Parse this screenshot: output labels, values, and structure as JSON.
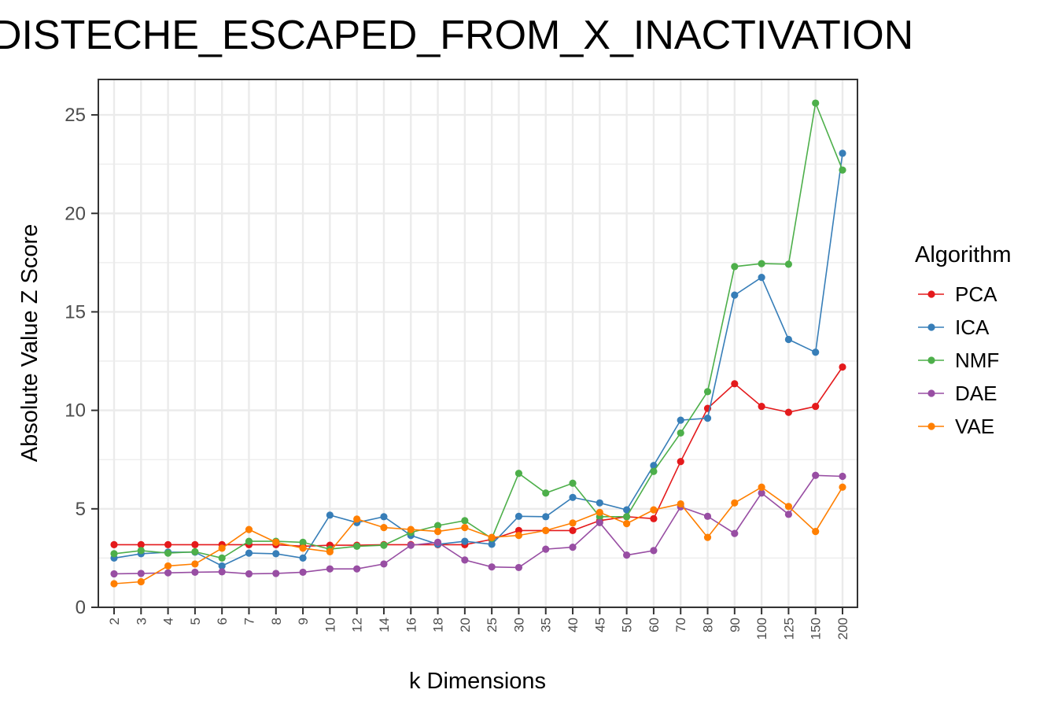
{
  "chart_data": {
    "type": "line",
    "title": "DISTECHE_ESCAPED_FROM_X_INACTIVATION",
    "xlabel": "k Dimensions",
    "ylabel": "Absolute Value Z Score",
    "ylim": [
      0,
      26.8
    ],
    "yticks": [
      0,
      5,
      10,
      15,
      20,
      25
    ],
    "grid": true,
    "legend_title": "Algorithm",
    "legend_position": "right",
    "categories": [
      "2",
      "3",
      "4",
      "5",
      "6",
      "7",
      "8",
      "9",
      "10",
      "12",
      "14",
      "16",
      "18",
      "20",
      "25",
      "30",
      "35",
      "40",
      "45",
      "50",
      "60",
      "70",
      "80",
      "90",
      "100",
      "125",
      "150",
      "200"
    ],
    "series": [
      {
        "name": "PCA",
        "color": "#e41a1c",
        "values": [
          3.18,
          3.18,
          3.18,
          3.18,
          3.18,
          3.18,
          3.18,
          3.1,
          3.15,
          3.15,
          3.18,
          3.18,
          3.18,
          3.18,
          3.45,
          3.9,
          3.9,
          3.9,
          4.4,
          4.6,
          4.5,
          7.4,
          10.1,
          11.35,
          10.2,
          9.9,
          10.2,
          12.2
        ]
      },
      {
        "name": "ICA",
        "color": "#377eb8",
        "values": [
          2.5,
          2.72,
          2.8,
          2.8,
          2.1,
          2.75,
          2.72,
          2.5,
          4.68,
          4.3,
          4.6,
          3.65,
          3.2,
          3.35,
          3.2,
          4.62,
          4.6,
          5.58,
          5.3,
          4.95,
          7.2,
          9.5,
          9.6,
          15.85,
          16.75,
          13.6,
          12.95,
          23.05
        ]
      },
      {
        "name": "NMF",
        "color": "#4daf4a",
        "values": [
          2.72,
          2.88,
          2.75,
          2.82,
          2.5,
          3.35,
          3.35,
          3.3,
          2.95,
          3.1,
          3.15,
          3.8,
          4.15,
          4.4,
          3.5,
          6.8,
          5.8,
          6.3,
          4.6,
          4.6,
          6.9,
          8.85,
          10.95,
          17.3,
          17.45,
          17.42,
          25.6,
          22.2
        ]
      },
      {
        "name": "DAE",
        "color": "#984ea3",
        "values": [
          1.7,
          1.72,
          1.75,
          1.78,
          1.8,
          1.7,
          1.72,
          1.78,
          1.95,
          1.95,
          2.2,
          3.15,
          3.3,
          2.4,
          2.05,
          2.02,
          2.95,
          3.05,
          4.3,
          2.65,
          2.88,
          5.1,
          4.62,
          3.75,
          5.8,
          4.72,
          6.7,
          6.65
        ]
      },
      {
        "name": "VAE",
        "color": "#ff7f00",
        "values": [
          1.2,
          1.3,
          2.1,
          2.2,
          3.0,
          3.95,
          3.3,
          3.0,
          2.82,
          4.48,
          4.05,
          3.95,
          3.85,
          4.05,
          3.55,
          3.65,
          3.9,
          4.28,
          4.82,
          4.25,
          4.95,
          5.25,
          3.55,
          5.3,
          6.1,
          5.12,
          3.85,
          6.1
        ]
      }
    ]
  }
}
